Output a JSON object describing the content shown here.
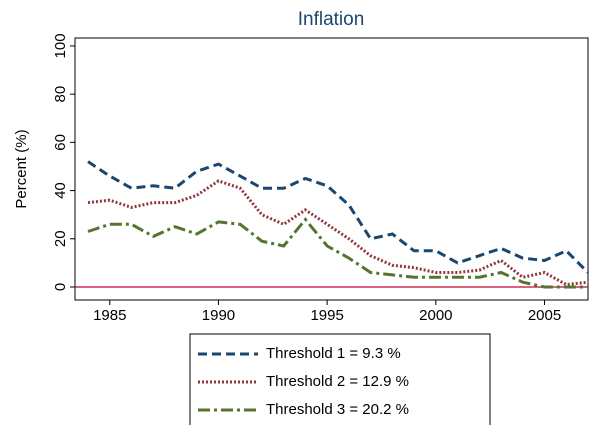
{
  "chart_data": {
    "type": "line",
    "title": "Inflation",
    "y_label": "Percent (%)",
    "x": [
      1984,
      1985,
      1986,
      1987,
      1988,
      1989,
      1990,
      1991,
      1992,
      1993,
      1994,
      1995,
      1996,
      1997,
      1998,
      1999,
      2000,
      2001,
      2002,
      2003,
      2004,
      2005,
      2006,
      2007
    ],
    "series": [
      {
        "name": "Threshold 1 = 9.3 %",
        "color": "#1a476f",
        "style": "dash",
        "values": [
          52,
          46,
          41,
          42,
          41,
          48,
          51,
          46,
          41,
          41,
          45,
          42,
          34,
          20,
          22,
          15,
          15,
          10,
          13,
          16,
          12,
          11,
          15,
          6
        ]
      },
      {
        "name": "Threshold 2 = 12.9 %",
        "color": "#90353b",
        "style": "dot",
        "values": [
          35,
          36,
          33,
          35,
          35,
          38,
          44,
          41,
          30,
          26,
          32,
          26,
          20,
          13,
          9,
          8,
          6,
          6,
          7,
          11,
          4,
          6,
          1,
          2
        ]
      },
      {
        "name": "Threshold 3 = 20.2 %",
        "color": "#55752f",
        "style": "dashdot",
        "values": [
          23,
          26,
          26,
          21,
          25,
          22,
          27,
          26,
          19,
          17,
          28,
          17,
          12,
          6,
          5,
          4,
          4,
          4,
          4,
          6,
          2,
          0,
          0,
          0
        ]
      }
    ],
    "xlim": [
      1983.4,
      2007
    ],
    "xticks": [
      1985,
      1990,
      1995,
      2000,
      2005
    ],
    "ylim": [
      -5.4,
      103.3
    ],
    "yticks": [
      0,
      20,
      40,
      60,
      80,
      100
    ],
    "yline": {
      "value": 0,
      "color": "#c10534"
    }
  }
}
